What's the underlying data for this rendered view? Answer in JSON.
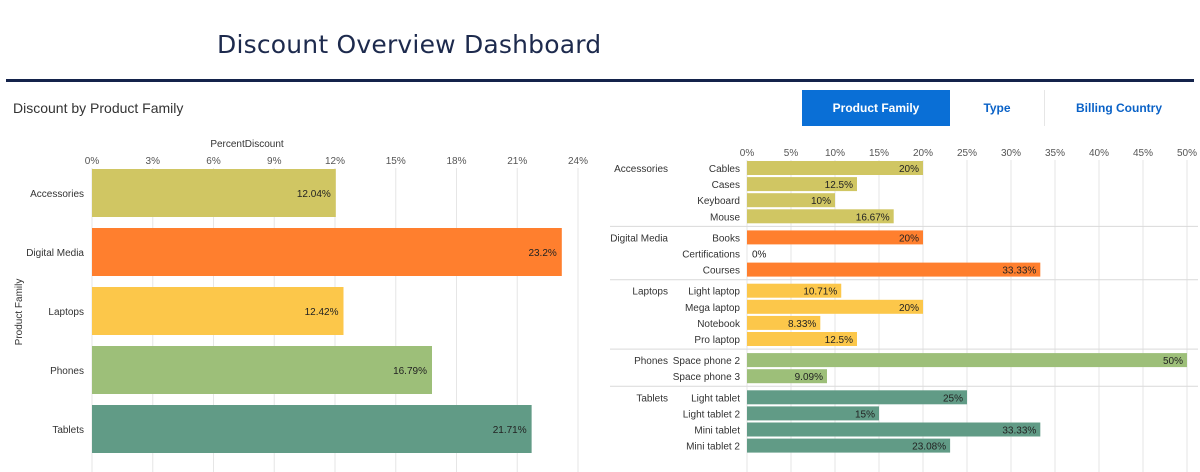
{
  "header": {
    "title": "Discount Overview Dashboard"
  },
  "section": {
    "title": "Discount by Product Family"
  },
  "tabs": [
    {
      "label": "Product Family",
      "active": true
    },
    {
      "label": "Type",
      "active": false
    },
    {
      "label": "Billing Country",
      "active": false
    }
  ],
  "colors": {
    "accent": "#0a6fd6",
    "title_rule": "#14234b",
    "Accessories": "#d0c663",
    "Digital Media": "#ff7f2e",
    "Laptops": "#fcc74a",
    "Phones": "#9dbf79",
    "Tablets": "#619b86"
  },
  "chart_data": [
    {
      "type": "bar",
      "orientation": "horizontal",
      "title": "PercentDiscount",
      "xlabel": "PercentDiscount",
      "ylabel": "Product Family",
      "xlim": [
        0,
        24
      ],
      "tick_labels": [
        "0%",
        "3%",
        "6%",
        "9%",
        "12%",
        "15%",
        "18%",
        "21%",
        "24%"
      ],
      "categories": [
        "Accessories",
        "Digital Media",
        "Laptops",
        "Phones",
        "Tablets"
      ],
      "values": [
        12.04,
        23.2,
        12.42,
        16.79,
        21.71
      ],
      "data_labels": [
        "12.04%",
        "23.2%",
        "12.42%",
        "16.79%",
        "21.71%"
      ],
      "grid": true
    },
    {
      "type": "bar",
      "orientation": "horizontal",
      "xlim": [
        0,
        50
      ],
      "tick_labels": [
        "0%",
        "5%",
        "10%",
        "15%",
        "20%",
        "25%",
        "30%",
        "35%",
        "40%",
        "45%",
        "50%"
      ],
      "grid": true,
      "groups": [
        {
          "name": "Accessories",
          "items": [
            {
              "label": "Cables",
              "value": 20,
              "text": "20%"
            },
            {
              "label": "Cases",
              "value": 12.5,
              "text": "12.5%"
            },
            {
              "label": "Keyboard",
              "value": 10,
              "text": "10%"
            },
            {
              "label": "Mouse",
              "value": 16.67,
              "text": "16.67%"
            }
          ]
        },
        {
          "name": "Digital Media",
          "items": [
            {
              "label": "Books",
              "value": 20,
              "text": "20%"
            },
            {
              "label": "Certifications",
              "value": 0,
              "text": "0%"
            },
            {
              "label": "Courses",
              "value": 33.33,
              "text": "33.33%"
            }
          ]
        },
        {
          "name": "Laptops",
          "items": [
            {
              "label": "Light laptop",
              "value": 10.71,
              "text": "10.71%"
            },
            {
              "label": "Mega laptop",
              "value": 20,
              "text": "20%"
            },
            {
              "label": "Notebook",
              "value": 8.33,
              "text": "8.33%"
            },
            {
              "label": "Pro laptop",
              "value": 12.5,
              "text": "12.5%"
            }
          ]
        },
        {
          "name": "Phones",
          "items": [
            {
              "label": "Space phone 2",
              "value": 50,
              "text": "50%"
            },
            {
              "label": "Space phone 3",
              "value": 9.09,
              "text": "9.09%"
            }
          ]
        },
        {
          "name": "Tablets",
          "items": [
            {
              "label": "Light tablet",
              "value": 25,
              "text": "25%"
            },
            {
              "label": "Light tablet 2",
              "value": 15,
              "text": "15%"
            },
            {
              "label": "Mini tablet",
              "value": 33.33,
              "text": "33.33%"
            },
            {
              "label": "Mini tablet 2",
              "value": 23.08,
              "text": "23.08%"
            }
          ]
        }
      ]
    }
  ]
}
